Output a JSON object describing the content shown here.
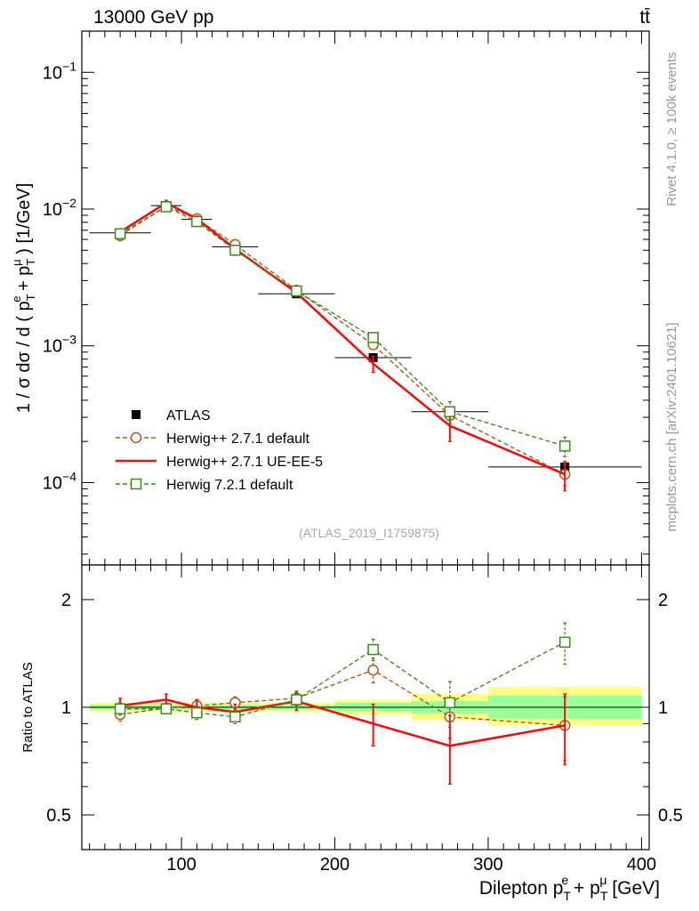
{
  "header": {
    "energy_label": "13000 GeV pp",
    "process_label": "tt̄"
  },
  "side_labels": {
    "rivet": "Rivet 4.1.0, ≥ 100k events",
    "mcplots": "mcplots.cern.ch [arXiv:2401.10621]"
  },
  "watermark": "(ATLAS_2019_I1759875)",
  "colors": {
    "atlas": "#000000",
    "herwig271_default": "#b05a1a",
    "herwig271_ueee5": "#ee1111",
    "herwig721": "#3d8c18",
    "band_inner": "#99ff99",
    "band_outer": "#ffff88"
  },
  "chart_data": [
    {
      "type": "line",
      "title": "",
      "xlabel": "Dilepton p_T^e + p_T^μ [GeV]",
      "ylabel": "1 / σ  dσ / d ( p_T^e + p_T^μ ) [1/GeV]",
      "xlim": [
        35,
        405
      ],
      "ylim": [
        2.5e-05,
        0.2
      ],
      "yscale": "log",
      "y_tick_labels": [
        {
          "base": "10",
          "exp": "−1",
          "value": 0.1
        },
        {
          "base": "10",
          "exp": "−2",
          "value": 0.01
        },
        {
          "base": "10",
          "exp": "−3",
          "value": 0.001
        },
        {
          "base": "10",
          "exp": "−4",
          "value": 0.0001
        }
      ],
      "legend": [
        {
          "label": "ATLAS",
          "style": "marker-square"
        },
        {
          "label": "Herwig++ 2.7.1 default",
          "style": "dashed-circle"
        },
        {
          "label": "Herwig++ 2.7.1 UE-EE-5",
          "style": "solid"
        },
        {
          "label": "Herwig 7.2.1 default",
          "style": "dashed-square"
        }
      ],
      "series": [
        {
          "name": "ATLAS",
          "x": [
            60,
            90,
            110,
            135,
            175,
            225,
            275,
            350
          ],
          "y": [
            0.0067,
            0.0106,
            0.0084,
            0.0053,
            0.0024,
            0.00082,
            0.00033,
            0.00013
          ],
          "xerr": [
            [
              40,
              80
            ],
            [
              80,
              100
            ],
            [
              100,
              120
            ],
            [
              120,
              150
            ],
            [
              150,
              200
            ],
            [
              200,
              250
            ],
            [
              250,
              300
            ],
            [
              300,
              400
            ]
          ]
        },
        {
          "name": "Herwig++ 2.7.1 default",
          "x": [
            60,
            90,
            110,
            135,
            175,
            225,
            275,
            350
          ],
          "y": [
            0.0064,
            0.0105,
            0.0085,
            0.0055,
            0.00255,
            0.00102,
            0.00031,
            0.000115
          ],
          "yerr": [
            0.0003,
            0.0004,
            0.0004,
            0.0003,
            0.00015,
            8e-05,
            4e-05,
            2e-05
          ]
        },
        {
          "name": "Herwig++ 2.7.1 UE-EE-5",
          "x": [
            60,
            90,
            110,
            135,
            175,
            225,
            275,
            350
          ],
          "y": [
            0.0068,
            0.0111,
            0.0085,
            0.0051,
            0.00245,
            0.00074,
            0.00026,
            0.000115
          ],
          "yerr": [
            0.0003,
            0.0005,
            0.0004,
            0.0003,
            0.00015,
            0.0001,
            6e-05,
            2.8e-05
          ]
        },
        {
          "name": "Herwig 7.2.1 default",
          "x": [
            60,
            90,
            110,
            135,
            175,
            225,
            275,
            350
          ],
          "y": [
            0.0066,
            0.0104,
            0.0081,
            0.005,
            0.00252,
            0.00115,
            0.00033,
            0.000185
          ],
          "yerr": [
            0.0003,
            0.0004,
            0.0004,
            0.0003,
            0.00015,
            8e-05,
            6e-05,
            3e-05
          ]
        }
      ]
    },
    {
      "type": "line",
      "title": "",
      "xlabel": "Dilepton p_T^e + p_T^μ [GeV]",
      "ylabel": "Ratio to ATLAS",
      "xlim": [
        35,
        405
      ],
      "ylim": [
        0.4,
        2.5
      ],
      "yscale": "log",
      "x_tick_labels": [
        "100",
        "200",
        "300",
        "400"
      ],
      "y_tick_labels": [
        "2",
        "1",
        "0.5"
      ],
      "bands": [
        {
          "x0": 40,
          "x1": 80,
          "inner": [
            0.985,
            1.015
          ],
          "outer": [
            0.97,
            1.03
          ]
        },
        {
          "x0": 80,
          "x1": 100,
          "inner": [
            0.985,
            1.015
          ],
          "outer": [
            0.97,
            1.03
          ]
        },
        {
          "x0": 100,
          "x1": 120,
          "inner": [
            0.985,
            1.015
          ],
          "outer": [
            0.97,
            1.03
          ]
        },
        {
          "x0": 120,
          "x1": 150,
          "inner": [
            0.985,
            1.015
          ],
          "outer": [
            0.97,
            1.03
          ]
        },
        {
          "x0": 150,
          "x1": 200,
          "inner": [
            0.985,
            1.015
          ],
          "outer": [
            0.97,
            1.03
          ]
        },
        {
          "x0": 200,
          "x1": 250,
          "inner": [
            0.975,
            1.03
          ],
          "outer": [
            0.955,
            1.05
          ]
        },
        {
          "x0": 250,
          "x1": 300,
          "inner": [
            0.96,
            1.04
          ],
          "outer": [
            0.92,
            1.09
          ]
        },
        {
          "x0": 300,
          "x1": 400,
          "inner": [
            0.93,
            1.08
          ],
          "outer": [
            0.89,
            1.14
          ]
        }
      ],
      "series": [
        {
          "name": "Herwig++ 2.7.1 default",
          "x": [
            60,
            90,
            110,
            135,
            175,
            225,
            275,
            350
          ],
          "y": [
            0.955,
            0.995,
            1.01,
            1.03,
            1.06,
            1.27,
            0.94,
            0.89
          ],
          "yerr": [
            0.04,
            0.03,
            0.04,
            0.04,
            0.05,
            0.1,
            0.12,
            0.18
          ]
        },
        {
          "name": "Herwig++ 2.7.1 UE-EE-5",
          "x": [
            60,
            90,
            110,
            135,
            175,
            225,
            275,
            350
          ],
          "y": [
            1.01,
            1.05,
            1.0,
            0.97,
            1.04,
            0.9,
            0.78,
            0.89
          ],
          "yerr": [
            0.05,
            0.04,
            0.05,
            0.05,
            0.06,
            0.12,
            0.17,
            0.2
          ]
        },
        {
          "name": "Herwig 7.2.1 default",
          "x": [
            60,
            90,
            110,
            135,
            175,
            225,
            275,
            350
          ],
          "y": [
            0.99,
            0.99,
            0.965,
            0.94,
            1.05,
            1.45,
            1.03,
            1.52
          ],
          "yerr": [
            0.04,
            0.03,
            0.04,
            0.04,
            0.05,
            0.1,
            0.15,
            0.2
          ]
        }
      ]
    }
  ]
}
